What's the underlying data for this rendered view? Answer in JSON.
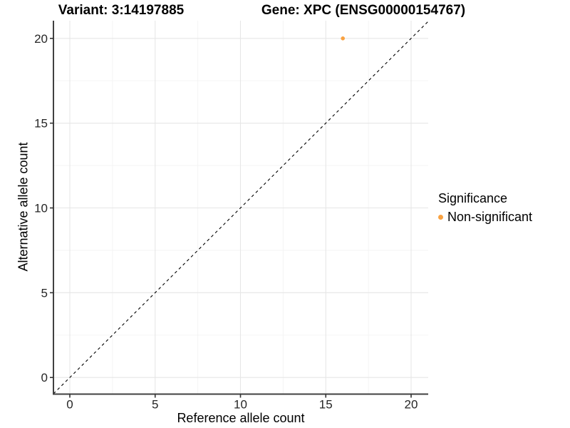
{
  "colors": {
    "point": "#F9A242",
    "grid_major": "#E6E6E6",
    "grid_minor": "#F3F3F3",
    "axis_line": "#404040",
    "tick_mark": "#333333",
    "tick_label": "#262626",
    "dashed_line": "#000000",
    "background": "#FFFFFF"
  },
  "chart_data": {
    "type": "scatter",
    "titles": {
      "left": "Variant: 3:14197885",
      "right": "Gene: XPC (ENSG00000154767)"
    },
    "xlabel": "Reference allele count",
    "ylabel": "Alternative allele count",
    "x_ticks": [
      0,
      5,
      10,
      15,
      20
    ],
    "y_ticks": [
      0,
      5,
      10,
      15,
      20
    ],
    "xlim": [
      -1,
      21
    ],
    "ylim": [
      -1,
      21
    ],
    "grid": "major+minor",
    "reference_line": {
      "type": "identity",
      "slope": 1,
      "intercept": 0,
      "style": "dashed",
      "color": "#000000"
    },
    "series": [
      {
        "name": "Non-significant",
        "color": "#F9A242",
        "points": [
          {
            "x": 16,
            "y": 20
          }
        ]
      }
    ],
    "legend_position": "right",
    "legend_title": "Significance"
  }
}
